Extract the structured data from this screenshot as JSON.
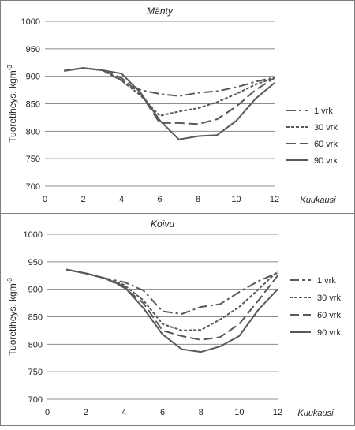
{
  "chart_data": [
    {
      "type": "line",
      "title": "Mänty",
      "xlabel": "Kuukausi",
      "ylabel": "Tuoretiheys, kgm",
      "ylabel_sup": "-3",
      "xlim": [
        0,
        12
      ],
      "ylim": [
        700,
        1000
      ],
      "xticks": [
        "0",
        "2",
        "4",
        "6",
        "8",
        "10",
        "12"
      ],
      "yticks": [
        "700",
        "750",
        "800",
        "850",
        "900",
        "950",
        "1000"
      ],
      "grid": "horizontal",
      "legend_position": "right",
      "series": [
        {
          "name": "1 vrk",
          "dash": "dashdot",
          "x": [
            1,
            2,
            3,
            4,
            5,
            6,
            7,
            8,
            9,
            10,
            11,
            12
          ],
          "y": [
            910,
            915,
            911,
            893,
            875,
            868,
            864,
            870,
            873,
            880,
            890,
            898
          ]
        },
        {
          "name": "30 vrk",
          "dash": "short",
          "x": [
            1,
            2,
            3,
            4,
            5,
            6,
            7,
            8,
            9,
            10,
            11,
            12
          ],
          "y": [
            910,
            915,
            911,
            892,
            865,
            828,
            836,
            842,
            853,
            868,
            885,
            897
          ]
        },
        {
          "name": "60 vrk",
          "dash": "long",
          "x": [
            1,
            2,
            3,
            4,
            5,
            6,
            7,
            8,
            9,
            10,
            11,
            12
          ],
          "y": [
            910,
            915,
            911,
            897,
            868,
            815,
            815,
            813,
            822,
            845,
            875,
            897
          ]
        },
        {
          "name": "90 vrk",
          "dash": "solid",
          "x": [
            1,
            2,
            3,
            4,
            5,
            6,
            7,
            8,
            9,
            10,
            11,
            12
          ],
          "y": [
            910,
            915,
            911,
            905,
            870,
            820,
            785,
            791,
            793,
            819,
            859,
            888
          ]
        }
      ]
    },
    {
      "type": "line",
      "title": "Koivu",
      "xlabel": "Kuukausi",
      "ylabel": "Tuoretiheys, kgm",
      "ylabel_sup": "-3",
      "xlim": [
        0,
        12
      ],
      "ylim": [
        700,
        1000
      ],
      "xticks": [
        "0",
        "2",
        "4",
        "6",
        "8",
        "10",
        "12"
      ],
      "yticks": [
        "700",
        "750",
        "800",
        "850",
        "900",
        "950",
        "1000"
      ],
      "grid": "horizontal",
      "legend_position": "right",
      "series": [
        {
          "name": "1 vrk",
          "dash": "dashdot",
          "x": [
            1,
            2,
            3,
            4,
            5,
            6,
            7,
            8,
            9,
            10,
            11,
            12
          ],
          "y": [
            936,
            929,
            920,
            913,
            898,
            860,
            855,
            868,
            873,
            895,
            915,
            930
          ]
        },
        {
          "name": "30 vrk",
          "dash": "short",
          "x": [
            1,
            2,
            3,
            4,
            5,
            6,
            7,
            8,
            9,
            10,
            11,
            12
          ],
          "y": [
            936,
            929,
            920,
            908,
            880,
            837,
            825,
            826,
            845,
            868,
            900,
            933
          ]
        },
        {
          "name": "60 vrk",
          "dash": "long",
          "x": [
            1,
            2,
            3,
            4,
            5,
            6,
            7,
            8,
            9,
            10,
            11,
            12
          ],
          "y": [
            936,
            929,
            920,
            903,
            875,
            825,
            815,
            808,
            813,
            837,
            880,
            925
          ]
        },
        {
          "name": "90 vrk",
          "dash": "solid",
          "x": [
            1,
            2,
            3,
            4,
            5,
            6,
            7,
            8,
            9,
            10,
            11,
            12
          ],
          "y": [
            936,
            929,
            920,
            905,
            866,
            818,
            791,
            786,
            796,
            815,
            863,
            900
          ]
        }
      ]
    }
  ]
}
